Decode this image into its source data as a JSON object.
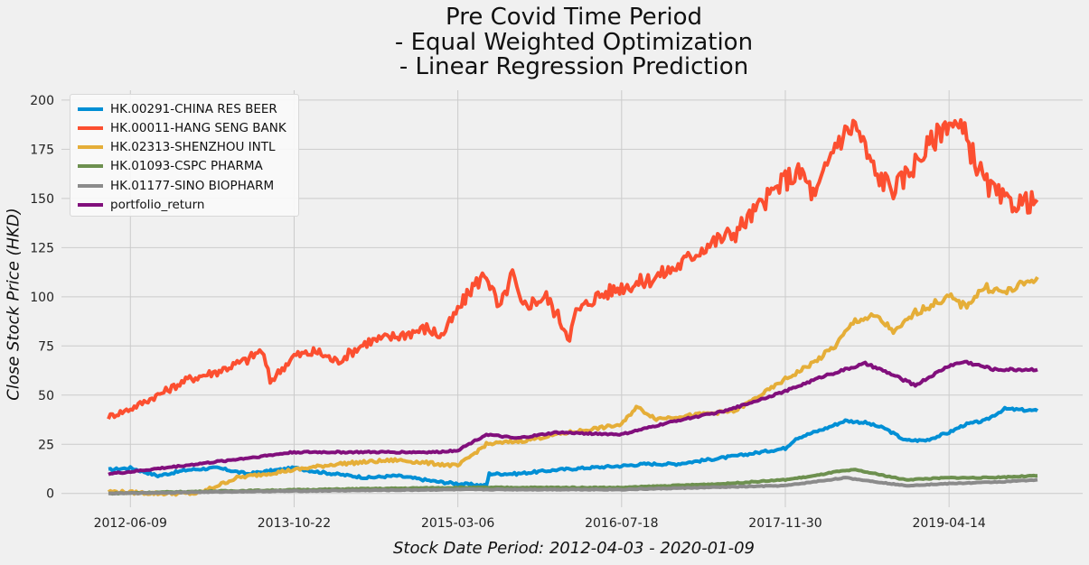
{
  "chart_data": {
    "type": "line",
    "title": [
      "Pre Covid Time Period",
      "- Equal Weighted Optimization",
      "- Linear Regression Prediction"
    ],
    "xlabel": "Stock Date Period: 2012-04-03 - 2020-01-09",
    "ylabel": "Close Stock Price (HKD)",
    "x_range": [
      "2012-04-03",
      "2020-01-09"
    ],
    "x_ticks": [
      "2012-06-09",
      "2013-10-22",
      "2015-03-06",
      "2016-07-18",
      "2017-11-30",
      "2019-04-14"
    ],
    "ylim": [
      -7,
      205
    ],
    "y_ticks": [
      0,
      25,
      50,
      75,
      100,
      125,
      150,
      175,
      200
    ],
    "grid": true,
    "legend_position": "top-left",
    "series": [
      {
        "name": "HK.00291-CHINA RES BEER",
        "color": "#008fd5",
        "points": [
          [
            "2012-04-03",
            12
          ],
          [
            "2012-06-09",
            13
          ],
          [
            "2012-09-01",
            9
          ],
          [
            "2012-12-01",
            12
          ],
          [
            "2013-03-01",
            13
          ],
          [
            "2013-06-01",
            10
          ],
          [
            "2013-10-22",
            13
          ],
          [
            "2014-01-01",
            11
          ],
          [
            "2014-06-01",
            8
          ],
          [
            "2014-09-01",
            9
          ],
          [
            "2015-01-01",
            6
          ],
          [
            "2015-03-06",
            5
          ],
          [
            "2015-06-01",
            4
          ],
          [
            "2015-06-10",
            10
          ],
          [
            "2015-09-01",
            10
          ],
          [
            "2016-01-01",
            12
          ],
          [
            "2016-04-01",
            13
          ],
          [
            "2016-07-18",
            14
          ],
          [
            "2016-10-01",
            15
          ],
          [
            "2017-01-01",
            15
          ],
          [
            "2017-04-01",
            17
          ],
          [
            "2017-07-01",
            19
          ],
          [
            "2017-11-30",
            23
          ],
          [
            "2018-01-01",
            28
          ],
          [
            "2018-04-01",
            33
          ],
          [
            "2018-06-01",
            37
          ],
          [
            "2018-08-01",
            36
          ],
          [
            "2018-10-01",
            33
          ],
          [
            "2018-12-01",
            27
          ],
          [
            "2019-02-01",
            27
          ],
          [
            "2019-04-14",
            31
          ],
          [
            "2019-06-01",
            35
          ],
          [
            "2019-08-01",
            37
          ],
          [
            "2019-10-01",
            43
          ],
          [
            "2020-01-09",
            42
          ]
        ]
      },
      {
        "name": "HK.00011-HANG SENG BANK",
        "color": "#fc4f30",
        "points": [
          [
            "2012-04-03",
            39
          ],
          [
            "2012-06-09",
            43
          ],
          [
            "2012-09-01",
            50
          ],
          [
            "2012-12-01",
            58
          ],
          [
            "2013-03-01",
            62
          ],
          [
            "2013-06-01",
            68
          ],
          [
            "2013-07-15",
            73
          ],
          [
            "2013-08-10",
            57
          ],
          [
            "2013-10-22",
            70
          ],
          [
            "2014-01-01",
            72
          ],
          [
            "2014-03-01",
            67
          ],
          [
            "2014-06-01",
            77
          ],
          [
            "2014-09-01",
            80
          ],
          [
            "2014-12-01",
            84
          ],
          [
            "2015-01-15",
            80
          ],
          [
            "2015-03-06",
            93
          ],
          [
            "2015-04-20",
            105
          ],
          [
            "2015-06-01",
            112
          ],
          [
            "2015-07-10",
            93
          ],
          [
            "2015-08-20",
            112
          ],
          [
            "2015-09-15",
            95
          ],
          [
            "2015-12-01",
            100
          ],
          [
            "2016-02-10",
            80
          ],
          [
            "2016-03-01",
            92
          ],
          [
            "2016-05-01",
            100
          ],
          [
            "2016-07-18",
            105
          ],
          [
            "2016-10-01",
            108
          ],
          [
            "2017-01-01",
            115
          ],
          [
            "2017-04-01",
            126
          ],
          [
            "2017-07-01",
            133
          ],
          [
            "2017-11-30",
            160
          ],
          [
            "2018-01-20",
            163
          ],
          [
            "2018-03-01",
            150
          ],
          [
            "2018-05-01",
            178
          ],
          [
            "2018-07-01",
            188
          ],
          [
            "2018-09-01",
            162
          ],
          [
            "2018-11-01",
            155
          ],
          [
            "2019-01-01",
            168
          ],
          [
            "2019-04-14",
            190
          ],
          [
            "2019-06-01",
            182
          ],
          [
            "2019-08-01",
            158
          ],
          [
            "2019-10-01",
            148
          ],
          [
            "2020-01-09",
            148
          ]
        ]
      },
      {
        "name": "HK.02313-SHENZHOU INTL",
        "color": "#e5ae38",
        "points": [
          [
            "2012-04-03",
            1
          ],
          [
            "2012-09-01",
            0
          ],
          [
            "2013-01-01",
            0
          ],
          [
            "2013-05-01",
            8
          ],
          [
            "2013-10-22",
            12
          ],
          [
            "2014-03-01",
            15
          ],
          [
            "2014-09-01",
            17
          ],
          [
            "2015-03-06",
            14
          ],
          [
            "2015-06-01",
            25
          ],
          [
            "2015-10-01",
            27
          ],
          [
            "2016-01-01",
            30
          ],
          [
            "2016-07-18",
            35
          ],
          [
            "2016-09-01",
            44
          ],
          [
            "2016-11-01",
            38
          ],
          [
            "2017-03-01",
            40
          ],
          [
            "2017-07-01",
            42
          ],
          [
            "2017-11-30",
            58
          ],
          [
            "2018-03-01",
            67
          ],
          [
            "2018-05-01",
            75
          ],
          [
            "2018-07-01",
            88
          ],
          [
            "2018-09-01",
            90
          ],
          [
            "2018-11-01",
            82
          ],
          [
            "2019-01-01",
            92
          ],
          [
            "2019-04-14",
            100
          ],
          [
            "2019-06-01",
            95
          ],
          [
            "2019-08-01",
            105
          ],
          [
            "2019-10-01",
            102
          ],
          [
            "2020-01-09",
            110
          ]
        ]
      },
      {
        "name": "HK.01093-CSPC PHARMA",
        "color": "#6d904f",
        "points": [
          [
            "2012-04-03",
            0
          ],
          [
            "2013-01-01",
            1
          ],
          [
            "2014-01-01",
            2
          ],
          [
            "2015-03-06",
            3
          ],
          [
            "2016-07-18",
            3
          ],
          [
            "2017-06-01",
            5
          ],
          [
            "2017-11-30",
            7
          ],
          [
            "2018-03-01",
            9
          ],
          [
            "2018-05-01",
            11
          ],
          [
            "2018-07-01",
            12
          ],
          [
            "2018-09-01",
            10
          ],
          [
            "2018-12-01",
            7
          ],
          [
            "2019-04-14",
            8
          ],
          [
            "2019-08-01",
            8
          ],
          [
            "2020-01-09",
            9
          ]
        ]
      },
      {
        "name": "HK.01177-SINO BIOPHARM",
        "color": "#8b8b8b",
        "points": [
          [
            "2012-04-03",
            0
          ],
          [
            "2013-06-01",
            1
          ],
          [
            "2015-03-06",
            2
          ],
          [
            "2016-07-18",
            2
          ],
          [
            "2017-11-30",
            4
          ],
          [
            "2018-06-01",
            8
          ],
          [
            "2018-12-01",
            4
          ],
          [
            "2019-04-14",
            5
          ],
          [
            "2019-10-01",
            6
          ],
          [
            "2020-01-09",
            7
          ]
        ]
      },
      {
        "name": "portfolio_return",
        "color": "#810f7c",
        "points": [
          [
            "2012-04-03",
            10
          ],
          [
            "2012-06-09",
            11
          ],
          [
            "2013-01-01",
            15
          ],
          [
            "2013-06-01",
            18
          ],
          [
            "2013-10-22",
            21
          ],
          [
            "2014-06-01",
            21
          ],
          [
            "2015-01-01",
            21
          ],
          [
            "2015-03-06",
            22
          ],
          [
            "2015-06-01",
            30
          ],
          [
            "2015-09-01",
            28
          ],
          [
            "2016-01-01",
            31
          ],
          [
            "2016-07-18",
            30
          ],
          [
            "2017-01-01",
            37
          ],
          [
            "2017-06-01",
            42
          ],
          [
            "2017-11-30",
            52
          ],
          [
            "2018-04-01",
            60
          ],
          [
            "2018-08-01",
            66
          ],
          [
            "2018-10-01",
            62
          ],
          [
            "2019-01-01",
            55
          ],
          [
            "2019-04-14",
            65
          ],
          [
            "2019-06-01",
            67
          ],
          [
            "2019-09-01",
            63
          ],
          [
            "2020-01-09",
            63
          ]
        ]
      }
    ]
  }
}
